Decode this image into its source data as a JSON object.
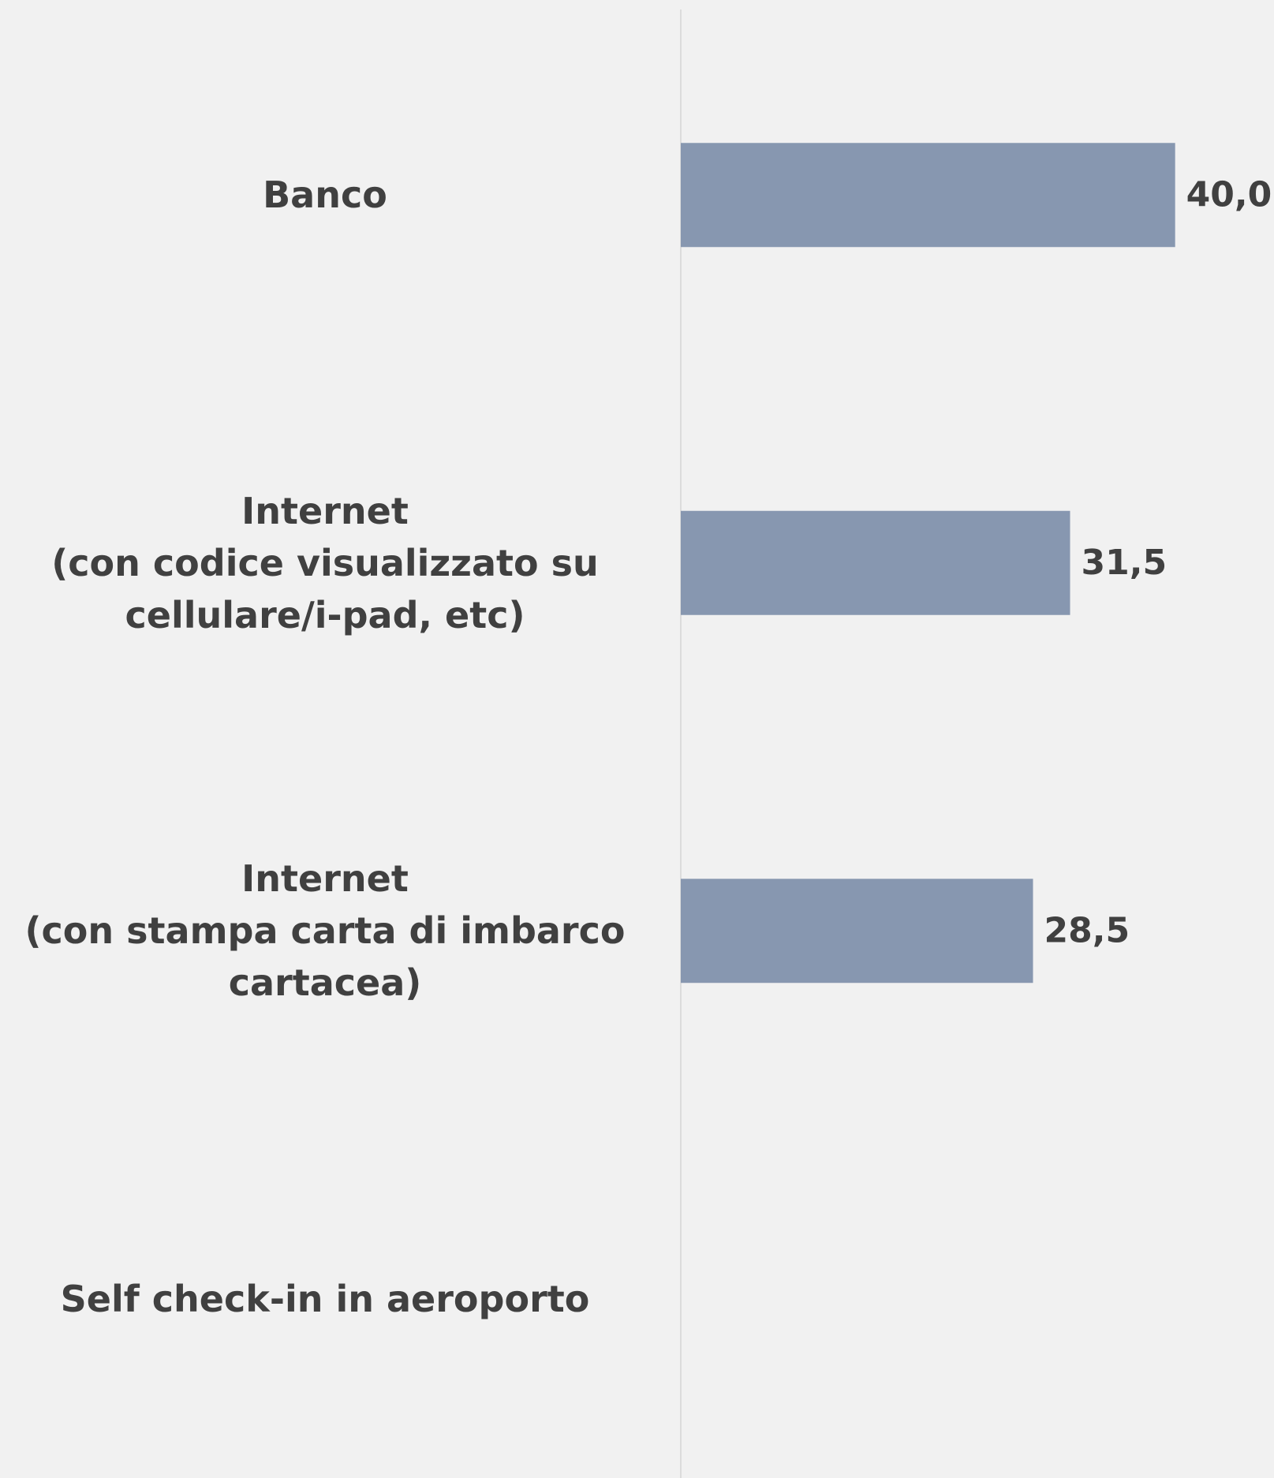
{
  "chart_data": {
    "type": "bar",
    "orientation": "horizontal",
    "categories": [
      "Banco",
      "Internet\n(con codice visualizzato su\ncellulare/i-pad, etc)",
      "Internet\n(con stampa carta di imbarco\ncartacea)",
      "Self check-in in aeroporto"
    ],
    "values": [
      40.0,
      31.5,
      28.5,
      null
    ],
    "value_labels": [
      "40,0",
      "31,5",
      "28,5",
      null
    ],
    "color": "#8797b0",
    "xlim": [
      0,
      48
    ]
  }
}
